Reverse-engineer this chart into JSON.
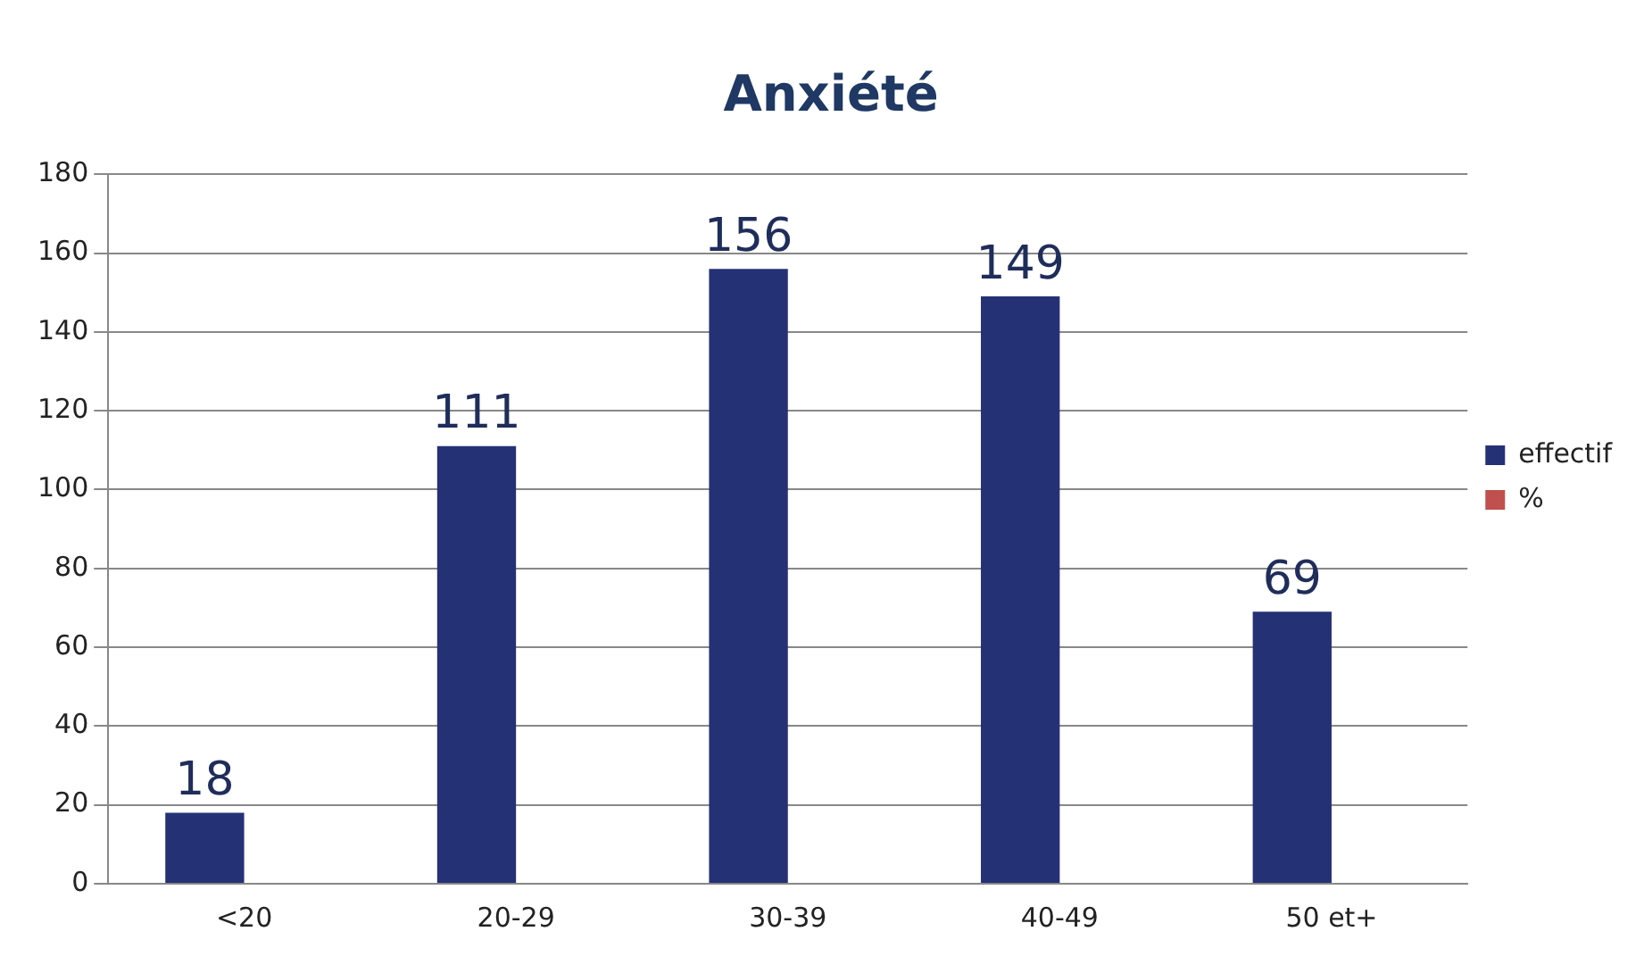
{
  "chart_data": {
    "type": "bar",
    "title": "Anxiété",
    "categories": [
      "<20",
      "20-29",
      "30-39",
      "40-49",
      "50 et+"
    ],
    "series": [
      {
        "name": "effectif",
        "color": "#253175",
        "values": [
          18,
          111,
          156,
          149,
          69
        ]
      },
      {
        "name": "%",
        "color": "#c0504d",
        "values": [
          null,
          null,
          null,
          null,
          null
        ]
      }
    ],
    "ylim": [
      0,
      180
    ],
    "yticks": [
      0,
      20,
      40,
      60,
      80,
      100,
      120,
      140,
      160,
      180
    ],
    "grid": "y",
    "legend": "right",
    "data_labels": true
  }
}
